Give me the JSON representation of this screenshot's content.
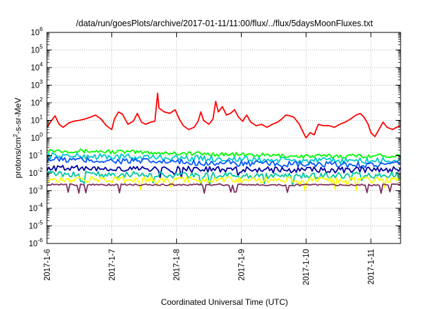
{
  "chart_data": {
    "type": "line",
    "title": "/data/run/goesPlots/archive/2017-01-11/11:00/flux/../flux/5daysMoonFluxes.txt",
    "xlabel": "Coordinated Universal Time (UTC)",
    "ylabel": "protons/cm2-s-sr-MeV",
    "ylabel_parts": {
      "before": "protons/cm",
      "sup": "2",
      "after": "-s-sr-MeV"
    },
    "y_scale": "log",
    "ylim": [
      1e-06,
      1000000.0
    ],
    "y_ticks": [
      {
        "value": 1e-06,
        "base": "10",
        "exp": "-6"
      },
      {
        "value": 1e-05,
        "base": "10",
        "exp": "-5"
      },
      {
        "value": 0.0001,
        "base": "10",
        "exp": "-4"
      },
      {
        "value": 0.001,
        "base": "10",
        "exp": "-3"
      },
      {
        "value": 0.01,
        "base": "10",
        "exp": "-2"
      },
      {
        "value": 0.1,
        "base": "10",
        "exp": "-1"
      },
      {
        "value": 1,
        "base": "10",
        "exp": "0"
      },
      {
        "value": 10,
        "base": "10",
        "exp": "1"
      },
      {
        "value": 100,
        "base": "10",
        "exp": "2"
      },
      {
        "value": 1000,
        "base": "10",
        "exp": "3"
      },
      {
        "value": 10000,
        "base": "10",
        "exp": "4"
      },
      {
        "value": 100000,
        "base": "10",
        "exp": "5"
      },
      {
        "value": 1000000,
        "base": "10",
        "exp": "6"
      }
    ],
    "xlim": [
      "2017-01-06T00:00",
      "2017-01-11T11:00"
    ],
    "x_ticks": [
      "2017-1-6",
      "2017-1-7",
      "2017-1-8",
      "2017-1-9",
      "2017-1-10",
      "2017-1-11"
    ],
    "grid": true,
    "legend": "none",
    "series": [
      {
        "color": "#ff0000",
        "points": [
          [
            "2017-01-06T00:00",
            4
          ],
          [
            "2017-01-06T01:30",
            9
          ],
          [
            "2017-01-06T03:00",
            18
          ],
          [
            "2017-01-06T04:30",
            6
          ],
          [
            "2017-01-06T06:00",
            4
          ],
          [
            "2017-01-06T08:00",
            7
          ],
          [
            "2017-01-06T10:00",
            9
          ],
          [
            "2017-01-06T12:00",
            10
          ],
          [
            "2017-01-06T14:00",
            12
          ],
          [
            "2017-01-06T16:00",
            15
          ],
          [
            "2017-01-06T18:00",
            20
          ],
          [
            "2017-01-06T20:00",
            12
          ],
          [
            "2017-01-06T22:00",
            5
          ],
          [
            "2017-01-07T00:00",
            3
          ],
          [
            "2017-01-07T01:00",
            12
          ],
          [
            "2017-01-07T02:30",
            30
          ],
          [
            "2017-01-07T04:00",
            22
          ],
          [
            "2017-01-07T06:00",
            6
          ],
          [
            "2017-01-07T08:00",
            9
          ],
          [
            "2017-01-07T09:30",
            25
          ],
          [
            "2017-01-07T11:00",
            8
          ],
          [
            "2017-01-07T12:30",
            6
          ],
          [
            "2017-01-07T14:30",
            8
          ],
          [
            "2017-01-07T16:00",
            9
          ],
          [
            "2017-01-07T17:00",
            350
          ],
          [
            "2017-01-07T17:30",
            50
          ],
          [
            "2017-01-07T19:30",
            30
          ],
          [
            "2017-01-07T21:30",
            25
          ],
          [
            "2017-01-07T23:30",
            40
          ],
          [
            "2017-01-08T01:00",
            12
          ],
          [
            "2017-01-08T02:30",
            5
          ],
          [
            "2017-01-08T04:30",
            3
          ],
          [
            "2017-01-08T06:30",
            4
          ],
          [
            "2017-01-08T08:00",
            9
          ],
          [
            "2017-01-08T09:00",
            30
          ],
          [
            "2017-01-08T10:00",
            10
          ],
          [
            "2017-01-08T12:00",
            6
          ],
          [
            "2017-01-08T13:30",
            12
          ],
          [
            "2017-01-08T14:30",
            120
          ],
          [
            "2017-01-08T15:30",
            30
          ],
          [
            "2017-01-08T17:00",
            60
          ],
          [
            "2017-01-08T18:30",
            20
          ],
          [
            "2017-01-08T20:00",
            25
          ],
          [
            "2017-01-08T21:30",
            40
          ],
          [
            "2017-01-08T23:00",
            15
          ],
          [
            "2017-01-09T00:30",
            9
          ],
          [
            "2017-01-09T02:00",
            20
          ],
          [
            "2017-01-09T03:30",
            8
          ],
          [
            "2017-01-09T05:30",
            5
          ],
          [
            "2017-01-09T07:30",
            6
          ],
          [
            "2017-01-09T09:30",
            4
          ],
          [
            "2017-01-09T11:30",
            6
          ],
          [
            "2017-01-09T13:30",
            8
          ],
          [
            "2017-01-09T15:00",
            12
          ],
          [
            "2017-01-09T16:30",
            20
          ],
          [
            "2017-01-09T18:00",
            18
          ],
          [
            "2017-01-09T19:30",
            15
          ],
          [
            "2017-01-09T21:30",
            6
          ],
          [
            "2017-01-09T23:00",
            2
          ],
          [
            "2017-01-10T00:00",
            1
          ],
          [
            "2017-01-10T01:30",
            2
          ],
          [
            "2017-01-10T03:00",
            1.5
          ],
          [
            "2017-01-10T04:30",
            6
          ],
          [
            "2017-01-10T06:30",
            5
          ],
          [
            "2017-01-10T08:30",
            5
          ],
          [
            "2017-01-10T10:30",
            4
          ],
          [
            "2017-01-10T12:30",
            6
          ],
          [
            "2017-01-10T14:30",
            8
          ],
          [
            "2017-01-10T16:30",
            12
          ],
          [
            "2017-01-10T18:30",
            20
          ],
          [
            "2017-01-10T20:00",
            25
          ],
          [
            "2017-01-10T21:30",
            15
          ],
          [
            "2017-01-10T23:00",
            6
          ],
          [
            "2017-01-11T00:00",
            2
          ],
          [
            "2017-01-11T01:30",
            1.2
          ],
          [
            "2017-01-11T03:00",
            3
          ],
          [
            "2017-01-11T04:30",
            8
          ],
          [
            "2017-01-11T06:00",
            4
          ],
          [
            "2017-01-11T08:00",
            3
          ],
          [
            "2017-01-11T09:30",
            4
          ],
          [
            "2017-01-11T11:00",
            5
          ]
        ]
      },
      {
        "color": "#00ff00",
        "points": [
          [
            "2017-01-06T00:00",
            0.2
          ],
          [
            "2017-01-08T06:00",
            0.13
          ],
          [
            "2017-01-10T00:00",
            0.09
          ],
          [
            "2017-01-11T11:00",
            0.1
          ]
        ]
      },
      {
        "color": "#00c8c8",
        "points": [
          [
            "2017-01-06T00:00",
            0.1
          ],
          [
            "2017-01-08T06:00",
            0.07
          ],
          [
            "2017-01-10T00:00",
            0.05
          ],
          [
            "2017-01-11T11:00",
            0.05
          ]
        ]
      },
      {
        "color": "#0055ff",
        "points": [
          [
            "2017-01-06T00:00",
            0.06
          ],
          [
            "2017-01-08T06:00",
            0.04
          ],
          [
            "2017-01-10T00:00",
            0.03
          ],
          [
            "2017-01-11T11:00",
            0.03
          ]
        ]
      },
      {
        "color": "#0000a0",
        "points": [
          [
            "2017-01-06T00:00",
            0.02
          ],
          [
            "2017-01-08T06:00",
            0.016
          ],
          [
            "2017-01-10T00:00",
            0.015
          ],
          [
            "2017-01-11T11:00",
            0.017
          ]
        ]
      },
      {
        "color": "#00c8a0",
        "points": [
          [
            "2017-01-06T00:00",
            0.009
          ],
          [
            "2017-01-08T06:00",
            0.008
          ],
          [
            "2017-01-10T00:00",
            0.007
          ],
          [
            "2017-01-11T11:00",
            0.008
          ]
        ]
      },
      {
        "color": "#ffff00",
        "points": [
          [
            "2017-01-06T00:00",
            0.0045
          ],
          [
            "2017-01-08T06:00",
            0.0042
          ],
          [
            "2017-01-10T00:00",
            0.004
          ],
          [
            "2017-01-11T11:00",
            0.004
          ]
        ]
      },
      {
        "color": "#803060",
        "points": [
          [
            "2017-01-06T00:00",
            0.0022
          ],
          [
            "2017-01-08T06:00",
            0.0022
          ],
          [
            "2017-01-10T00:00",
            0.0021
          ],
          [
            "2017-01-11T11:00",
            0.0022
          ]
        ]
      }
    ]
  }
}
